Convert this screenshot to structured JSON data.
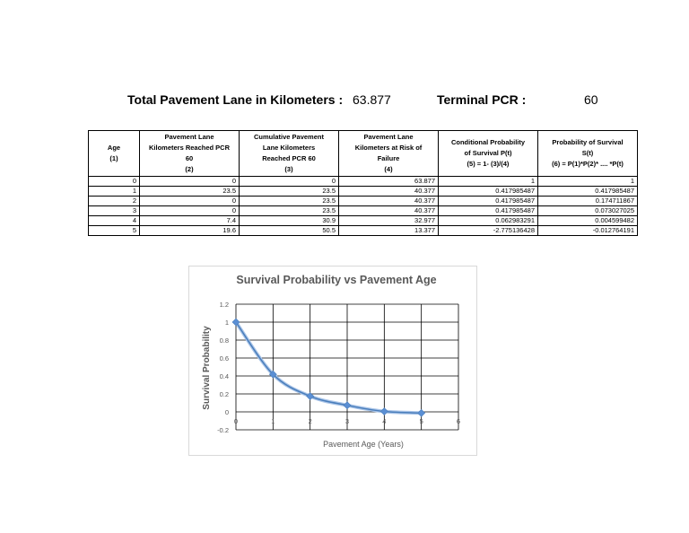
{
  "header": {
    "total_label": "Total Pavement Lane in Kilometers :",
    "total_value": "63.877",
    "terminal_label": "Terminal PCR :",
    "terminal_value": "60"
  },
  "table": {
    "columns": [
      [
        "Age",
        "(1)"
      ],
      [
        "Pavement Lane",
        "Kilometers Reached PCR",
        "60",
        "(2)"
      ],
      [
        "Cumulative Pavement",
        "Lane Kilometers",
        "Reached PCR 60",
        "(3)"
      ],
      [
        "Pavement Lane",
        "Kilometers at Risk of",
        "Failure",
        "(4)"
      ],
      [
        "Conditional Probability",
        "of Survival P(t)",
        "(5) = 1- (3)/(4)"
      ],
      [
        "Probability of Survival",
        "S(t)",
        "(6) = P(1)*P(2)* .... *P(t)"
      ]
    ],
    "rows": [
      [
        "0",
        "0",
        "0",
        "63.877",
        "1",
        "1"
      ],
      [
        "1",
        "23.5",
        "23.5",
        "40.377",
        "0.417985487",
        "0.417985487"
      ],
      [
        "2",
        "0",
        "23.5",
        "40.377",
        "0.417985487",
        "0.174711867"
      ],
      [
        "3",
        "0",
        "23.5",
        "40.377",
        "0.417985487",
        "0.073027025"
      ],
      [
        "4",
        "7.4",
        "30.9",
        "32.977",
        "0.062983291",
        "0.004599482"
      ],
      [
        "5",
        "19.6",
        "50.5",
        "13.377",
        "-2.775136428",
        "-0.012764191"
      ]
    ]
  },
  "chart_data": {
    "type": "line",
    "title": "Survival Probability vs Pavement Age",
    "xlabel": "Pavement Age (Years)",
    "ylabel": "Survival Probability",
    "x": [
      0,
      1,
      2,
      3,
      4,
      5
    ],
    "series": [
      {
        "values": [
          1,
          0.417985487,
          0.174711867,
          0.073027025,
          0.004599482,
          -0.012764191
        ]
      }
    ],
    "xlim": [
      0,
      6
    ],
    "ylim": [
      -0.2,
      1.2
    ],
    "xticks": [
      "0",
      "1",
      "2",
      "3",
      "4",
      "5",
      "6"
    ],
    "yticks": [
      "-0.2",
      "0",
      "0.2",
      "0.4",
      "0.6",
      "0.8",
      "1",
      "1.2"
    ],
    "grid": true,
    "line_color": "#4a7ebb",
    "marker_color": "#5b8fd4"
  }
}
